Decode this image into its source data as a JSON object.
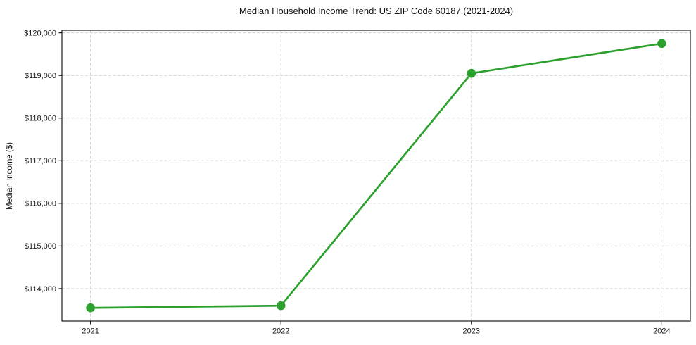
{
  "chart_data": {
    "type": "line",
    "title": "Median Household Income Trend: US ZIP Code 60187 (2021-2024)",
    "xlabel": "",
    "ylabel": "Median Income ($)",
    "categories": [
      "2021",
      "2022",
      "2023",
      "2024"
    ],
    "x": [
      2021,
      2022,
      2023,
      2024
    ],
    "series": [
      {
        "name": "Median Household Income",
        "values": [
          113550,
          113600,
          119050,
          119750
        ]
      }
    ],
    "xlim": [
      2020.85,
      2024.15
    ],
    "ylim": [
      113240,
      120060
    ],
    "yticks": [
      114000,
      115000,
      116000,
      117000,
      118000,
      119000,
      120000
    ],
    "ytick_labels": [
      "$114,000",
      "$115,000",
      "$116,000",
      "$117,000",
      "$118,000",
      "$119,000",
      "$120,000"
    ],
    "grid": true,
    "legend": "none",
    "colors": {
      "line": "#2ca02c",
      "marker": "#2ca02c",
      "grid": "#cfcfcf",
      "spine": "#1a1a1a",
      "text": "#1a1a1a",
      "background": "#ffffff"
    }
  }
}
